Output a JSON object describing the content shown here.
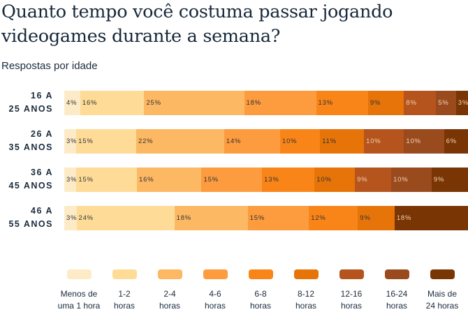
{
  "title": "Quanto tempo você costuma passar jogando videogames durante a semana?",
  "subtitle": "Respostas por idade",
  "chart_data": {
    "type": "bar",
    "orientation": "horizontal-stacked-100",
    "title": "Quanto tempo você costuma passar jogando videogames durante a semana?",
    "subtitle": "Respostas por idade",
    "categories": [
      [
        "16 A",
        "25 ANOS"
      ],
      [
        "26 A",
        "35 ANOS"
      ],
      [
        "36 A",
        "45 ANOS"
      ],
      [
        "46 A",
        "55 ANOS"
      ]
    ],
    "series": [
      {
        "name": [
          "Menos de",
          "uma 1 hora"
        ],
        "color": "#fdebc8",
        "label_color": "#333333",
        "values": [
          4,
          3,
          3,
          3
        ]
      },
      {
        "name": [
          "1-2",
          "horas"
        ],
        "color": "#fedc98",
        "label_color": "#333333",
        "values": [
          16,
          15,
          15,
          24
        ]
      },
      {
        "name": [
          "2-4",
          "horas"
        ],
        "color": "#fdb863",
        "label_color": "#333333",
        "values": [
          25,
          22,
          16,
          18
        ]
      },
      {
        "name": [
          "4-6",
          "horas"
        ],
        "color": "#fd9b3f",
        "label_color": "#333333",
        "values": [
          18,
          14,
          15,
          15
        ]
      },
      {
        "name": [
          "6-8",
          "horas"
        ],
        "color": "#f98519",
        "label_color": "#333333",
        "values": [
          13,
          10,
          13,
          12
        ]
      },
      {
        "name": [
          "8-12",
          "horas"
        ],
        "color": "#e67409",
        "label_color": "#333333",
        "values": [
          9,
          11,
          10,
          9
        ]
      },
      {
        "name": [
          "12-16",
          "horas"
        ],
        "color": "#b5541d",
        "label_color": "#f3d2b0",
        "values": [
          8,
          10,
          9,
          null
        ]
      },
      {
        "name": [
          "16-24",
          "horas"
        ],
        "color": "#9a4b1e",
        "label_color": "#f3d2b0",
        "values": [
          5,
          10,
          10,
          null
        ]
      },
      {
        "name": [
          "Mais de",
          "24 horas"
        ],
        "color": "#7a3505",
        "label_color": "#f3d2b0",
        "values": [
          3,
          6,
          9,
          18
        ]
      }
    ],
    "value_suffix": "%",
    "legend_position": "bottom",
    "grid": false
  }
}
